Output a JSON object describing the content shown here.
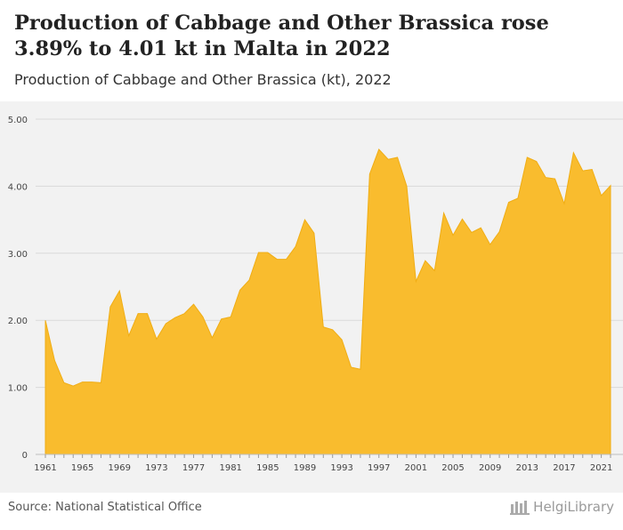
{
  "header": {
    "title": "Production of Cabbage and Other Brassica rose 3.89% to 4.01 kt in Malta in 2022",
    "subtitle": "Production of Cabbage and Other Brassica (kt), 2022"
  },
  "footer": {
    "source": "Source: National Statistical Office",
    "logo_text": "HelgiLibrary"
  },
  "colors": {
    "area_fill": "#f9bc2e",
    "area_stroke": "#f0ad14",
    "grid": "#d9d9d9",
    "plot_background": "#f2f2f2"
  },
  "chart_data": {
    "type": "area",
    "title": "Production of Cabbage and Other Brassica (kt), 2022",
    "xlabel": "",
    "ylabel": "",
    "ylim": [
      0,
      5
    ],
    "yticks": [
      "0",
      "1.00",
      "2.00",
      "3.00",
      "4.00",
      "5.00"
    ],
    "xticks": [
      "1961",
      "1965",
      "1969",
      "1973",
      "1977",
      "1981",
      "1985",
      "1989",
      "1993",
      "1997",
      "2001",
      "2005",
      "2009",
      "2013",
      "2017",
      "2021"
    ],
    "grid": true,
    "x": [
      1961,
      1962,
      1963,
      1964,
      1965,
      1966,
      1967,
      1968,
      1969,
      1970,
      1971,
      1972,
      1973,
      1974,
      1975,
      1976,
      1977,
      1978,
      1979,
      1980,
      1981,
      1982,
      1983,
      1984,
      1985,
      1986,
      1987,
      1988,
      1989,
      1990,
      1991,
      1992,
      1993,
      1994,
      1995,
      1996,
      1997,
      1998,
      1999,
      2000,
      2001,
      2002,
      2003,
      2004,
      2005,
      2006,
      2007,
      2008,
      2009,
      2010,
      2011,
      2012,
      2013,
      2014,
      2015,
      2016,
      2017,
      2018,
      2019,
      2020,
      2021,
      2022
    ],
    "values": [
      2.0,
      1.4,
      1.07,
      1.02,
      1.08,
      1.08,
      1.07,
      2.2,
      2.44,
      1.77,
      2.1,
      2.1,
      1.72,
      1.95,
      2.04,
      2.1,
      2.24,
      2.05,
      1.74,
      2.02,
      2.05,
      2.45,
      2.6,
      3.01,
      3.01,
      2.91,
      2.91,
      3.1,
      3.5,
      3.3,
      1.9,
      1.86,
      1.71,
      1.3,
      1.27,
      4.18,
      4.55,
      4.4,
      4.43,
      4.0,
      2.58,
      2.89,
      2.74,
      3.6,
      3.27,
      3.51,
      3.31,
      3.38,
      3.13,
      3.32,
      3.76,
      3.82,
      4.43,
      4.37,
      4.13,
      4.11,
      3.74,
      4.5,
      4.23,
      4.25,
      3.86,
      4.01
    ]
  }
}
